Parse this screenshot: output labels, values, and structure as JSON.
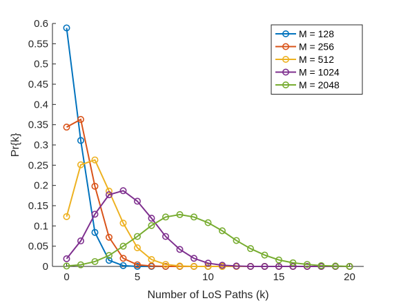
{
  "chart_data": {
    "type": "line",
    "title": "",
    "xlabel": "Number of LoS Paths (k)",
    "ylabel": "Pr{k}",
    "xlim": [
      -1,
      21
    ],
    "ylim": [
      0,
      0.6
    ],
    "xticks": [
      0,
      5,
      10,
      15,
      20
    ],
    "yticks": [
      0,
      0.05,
      0.1,
      0.15,
      0.2,
      0.25,
      0.3,
      0.35,
      0.4,
      0.45,
      0.5,
      0.55,
      0.6
    ],
    "ytick_labels": [
      "0",
      "0.05",
      "0.1",
      "0.15",
      "0.2",
      "0.25",
      "0.3",
      "0.35",
      "0.4",
      "0.45",
      "0.5",
      "0.55",
      "0.6"
    ],
    "xtick_labels": [
      "0",
      "5",
      "10",
      "15",
      "20"
    ],
    "grid": false,
    "legend_position": "top-right",
    "marker": "circle",
    "series": [
      {
        "name": "M = 128",
        "color": "#0072BD",
        "x": [
          0,
          1,
          2,
          3,
          4,
          5,
          6,
          7,
          8,
          9,
          10,
          11,
          12,
          13,
          14,
          15,
          16,
          17,
          18,
          19,
          20
        ],
        "values": [
          0.589,
          0.311,
          0.084,
          0.015,
          0.002,
          0.0,
          0.0,
          0.0,
          0.0,
          0.0,
          0.0,
          0.0,
          0.0,
          0.0,
          0.0,
          0.0,
          0.0,
          0.0,
          0.0,
          0.0,
          0.0
        ]
      },
      {
        "name": "M = 256",
        "color": "#D95319",
        "x": [
          0,
          1,
          2,
          3,
          4,
          5,
          6,
          7,
          8,
          9,
          10,
          11,
          12,
          13,
          14,
          15,
          16,
          17,
          18,
          19,
          20
        ],
        "values": [
          0.344,
          0.363,
          0.198,
          0.072,
          0.02,
          0.004,
          0.001,
          0.0,
          0.0,
          0.0,
          0.0,
          0.0,
          0.0,
          0.0,
          0.0,
          0.0,
          0.0,
          0.0,
          0.0,
          0.0,
          0.0
        ]
      },
      {
        "name": "M = 512",
        "color": "#EDB120",
        "x": [
          0,
          1,
          2,
          3,
          4,
          5,
          6,
          7,
          8,
          9,
          10,
          11,
          12,
          13,
          14,
          15,
          16,
          17,
          18,
          19,
          20
        ],
        "values": [
          0.123,
          0.251,
          0.263,
          0.186,
          0.107,
          0.046,
          0.017,
          0.005,
          0.001,
          0.0,
          0.0,
          0.0,
          0.0,
          0.0,
          0.0,
          0.0,
          0.0,
          0.0,
          0.0,
          0.0,
          0.0
        ]
      },
      {
        "name": "M = 1024",
        "color": "#7E2F8E",
        "x": [
          0,
          1,
          2,
          3,
          4,
          5,
          6,
          7,
          8,
          9,
          10,
          11,
          12,
          13,
          14,
          15,
          16,
          17,
          18,
          19,
          20
        ],
        "values": [
          0.019,
          0.063,
          0.129,
          0.177,
          0.187,
          0.161,
          0.119,
          0.074,
          0.042,
          0.02,
          0.008,
          0.003,
          0.001,
          0.0,
          0.0,
          0.0,
          0.0,
          0.0,
          0.0,
          0.0,
          0.0
        ]
      },
      {
        "name": "M = 2048",
        "color": "#77AC30",
        "x": [
          0,
          1,
          2,
          3,
          4,
          5,
          6,
          7,
          8,
          9,
          10,
          11,
          12,
          13,
          14,
          15,
          16,
          17,
          18,
          19,
          20
        ],
        "values": [
          0.001,
          0.004,
          0.012,
          0.027,
          0.05,
          0.074,
          0.101,
          0.122,
          0.128,
          0.122,
          0.108,
          0.088,
          0.064,
          0.044,
          0.028,
          0.016,
          0.009,
          0.005,
          0.002,
          0.001,
          0.0
        ]
      }
    ]
  }
}
